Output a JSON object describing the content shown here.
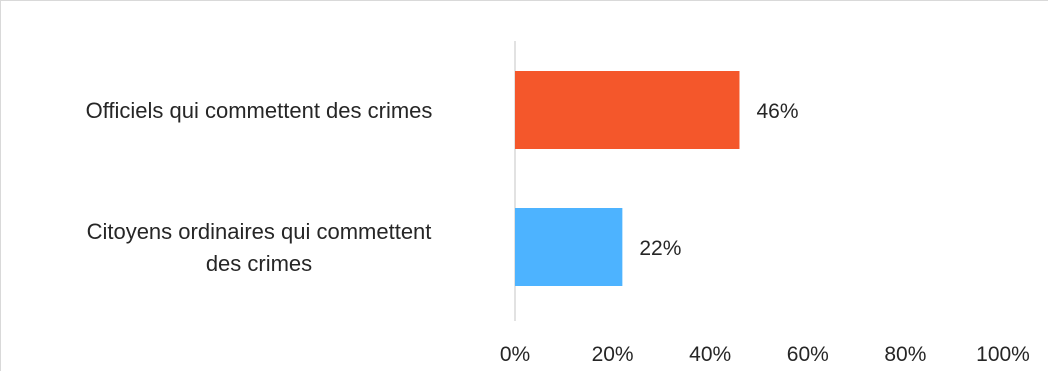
{
  "chart_data": {
    "type": "bar",
    "orientation": "horizontal",
    "title": "",
    "xlabel": "",
    "ylabel": "",
    "xlim": [
      0,
      100
    ],
    "ticks": [
      "0%",
      "20%",
      "40%",
      "60%",
      "80%",
      "100%"
    ],
    "categories": [
      {
        "lines": [
          "Officiels qui commettent des crimes"
        ]
      },
      {
        "lines": [
          "Citoyens ordinaires qui commettent",
          "des crimes"
        ]
      }
    ],
    "values": [
      46,
      22
    ],
    "data_labels": [
      "46%",
      "22%"
    ],
    "colors": [
      "#f4572b",
      "#4db3ff"
    ],
    "grid": false,
    "legend": "none"
  }
}
